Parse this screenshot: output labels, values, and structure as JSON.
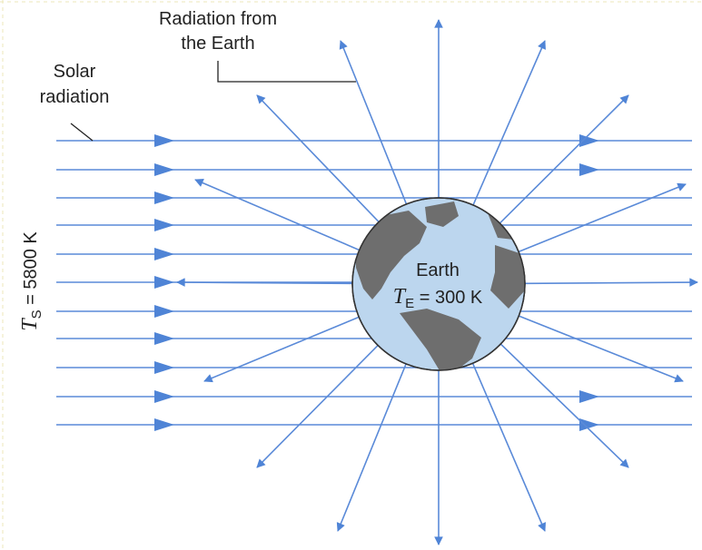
{
  "labels": {
    "earth_radiation": [
      "Radiation from",
      "the Earth"
    ],
    "solar_radiation": [
      "Solar",
      "radiation"
    ],
    "sun_temperature": {
      "symbol": "T",
      "subscript": "S",
      "text": " = 5800 K"
    },
    "earth": "Earth",
    "earth_temperature": {
      "symbol": "T",
      "subscript": "E",
      "text": " = 300 K"
    }
  }
}
